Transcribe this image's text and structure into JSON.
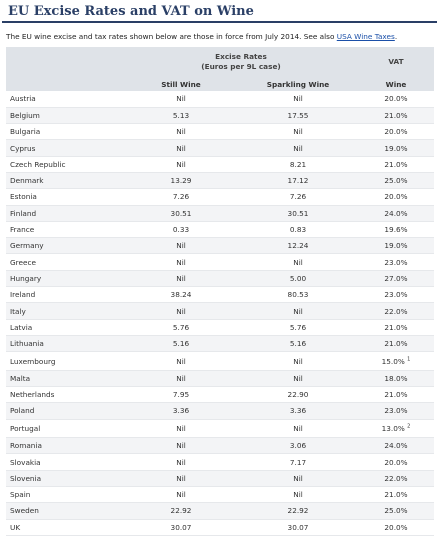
{
  "page": {
    "title": "EU Excise Rates and VAT on Wine",
    "intro_prefix": "The EU wine excise and tax rates shown below are those in force from July 2014. See also ",
    "intro_link": "USA Wine Taxes",
    "intro_suffix": "."
  },
  "table": {
    "group_header_line1": "Excise Rates",
    "group_header_line2": "(Euros per 9L case)",
    "vat_header": "VAT",
    "col_still": "Still Wine",
    "col_sparkling": "Sparkling Wine",
    "col_wine": "Wine",
    "rows": [
      {
        "country": "Austria",
        "still": "Nil",
        "sparkling": "Nil",
        "vat": "20.0%",
        "note": ""
      },
      {
        "country": "Belgium",
        "still": "5.13",
        "sparkling": "17.55",
        "vat": "21.0%",
        "note": ""
      },
      {
        "country": "Bulgaria",
        "still": "Nil",
        "sparkling": "Nil",
        "vat": "20.0%",
        "note": ""
      },
      {
        "country": "Cyprus",
        "still": "Nil",
        "sparkling": "Nil",
        "vat": "19.0%",
        "note": ""
      },
      {
        "country": "Czech Republic",
        "still": "Nil",
        "sparkling": "8.21",
        "vat": "21.0%",
        "note": ""
      },
      {
        "country": "Denmark",
        "still": "13.29",
        "sparkling": "17.12",
        "vat": "25.0%",
        "note": ""
      },
      {
        "country": "Estonia",
        "still": "7.26",
        "sparkling": "7.26",
        "vat": "20.0%",
        "note": ""
      },
      {
        "country": "Finland",
        "still": "30.51",
        "sparkling": "30.51",
        "vat": "24.0%",
        "note": ""
      },
      {
        "country": "France",
        "still": "0.33",
        "sparkling": "0.83",
        "vat": "19.6%",
        "note": ""
      },
      {
        "country": "Germany",
        "still": "Nil",
        "sparkling": "12.24",
        "vat": "19.0%",
        "note": ""
      },
      {
        "country": "Greece",
        "still": "Nil",
        "sparkling": "Nil",
        "vat": "23.0%",
        "note": ""
      },
      {
        "country": "Hungary",
        "still": "Nil",
        "sparkling": "5.00",
        "vat": "27.0%",
        "note": ""
      },
      {
        "country": "Ireland",
        "still": "38.24",
        "sparkling": "80.53",
        "vat": "23.0%",
        "note": ""
      },
      {
        "country": "Italy",
        "still": "Nil",
        "sparkling": "Nil",
        "vat": "22.0%",
        "note": ""
      },
      {
        "country": "Latvia",
        "still": "5.76",
        "sparkling": "5.76",
        "vat": "21.0%",
        "note": ""
      },
      {
        "country": "Lithuania",
        "still": "5.16",
        "sparkling": "5.16",
        "vat": "21.0%",
        "note": ""
      },
      {
        "country": "Luxembourg",
        "still": "Nil",
        "sparkling": "Nil",
        "vat": "15.0%",
        "note": "1"
      },
      {
        "country": "Malta",
        "still": "Nil",
        "sparkling": "Nil",
        "vat": "18.0%",
        "note": ""
      },
      {
        "country": "Netherlands",
        "still": "7.95",
        "sparkling": "22.90",
        "vat": "21.0%",
        "note": ""
      },
      {
        "country": "Poland",
        "still": "3.36",
        "sparkling": "3.36",
        "vat": "23.0%",
        "note": ""
      },
      {
        "country": "Portugal",
        "still": "Nil",
        "sparkling": "Nil",
        "vat": "13.0%",
        "note": "2"
      },
      {
        "country": "Romania",
        "still": "Nil",
        "sparkling": "3.06",
        "vat": "24.0%",
        "note": ""
      },
      {
        "country": "Slovakia",
        "still": "Nil",
        "sparkling": "7.17",
        "vat": "20.0%",
        "note": ""
      },
      {
        "country": "Slovenia",
        "still": "Nil",
        "sparkling": "Nil",
        "vat": "22.0%",
        "note": ""
      },
      {
        "country": "Spain",
        "still": "Nil",
        "sparkling": "Nil",
        "vat": "21.0%",
        "note": ""
      },
      {
        "country": "Sweden",
        "still": "22.92",
        "sparkling": "22.92",
        "vat": "25.0%",
        "note": ""
      },
      {
        "country": "UK",
        "still": "30.07",
        "sparkling": "30.07",
        "vat": "20.0%",
        "note": ""
      }
    ]
  }
}
